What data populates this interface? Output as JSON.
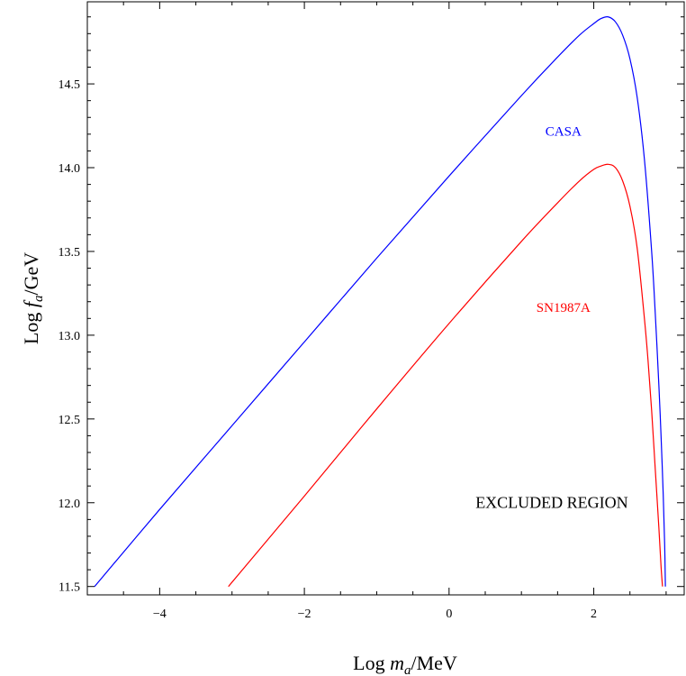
{
  "chart_data": {
    "type": "line",
    "xlabel": {
      "pre": "Log ",
      "var": "m",
      "sub": "a",
      "post": "/MeV"
    },
    "ylabel": {
      "pre": "Log ",
      "var": "f",
      "sub": "a",
      "post": "/GeV"
    },
    "xlim": [
      -5.0,
      3.25
    ],
    "ylim": [
      11.45,
      14.99
    ],
    "x_ticks": [
      -4,
      -2,
      0,
      2
    ],
    "x_tick_labels": [
      "−4",
      "−2",
      "0",
      "2"
    ],
    "y_ticks": [
      11.5,
      12.0,
      12.5,
      13.0,
      13.5,
      14.0,
      14.5
    ],
    "y_tick_labels": [
      "11.5",
      "12.0",
      "12.5",
      "13.0",
      "13.5",
      "14.0",
      "14.5"
    ],
    "series": [
      {
        "name": "CASA",
        "color": "#0000ff",
        "x": [
          -4.9,
          -4.0,
          -3.0,
          -2.0,
          -1.0,
          0.0,
          1.0,
          1.5,
          1.8,
          2.0,
          2.1,
          2.2,
          2.3,
          2.4,
          2.5,
          2.6,
          2.7,
          2.8,
          2.85,
          2.9,
          2.93,
          2.96,
          2.98,
          2.99
        ],
        "y": [
          11.5,
          11.96,
          12.46,
          12.96,
          13.46,
          13.95,
          14.43,
          14.66,
          14.79,
          14.86,
          14.89,
          14.9,
          14.87,
          14.79,
          14.65,
          14.42,
          14.05,
          13.5,
          13.13,
          12.7,
          12.4,
          12.05,
          11.75,
          11.5
        ]
      },
      {
        "name": "SN1987A",
        "color": "#ff0000",
        "x": [
          -3.05,
          -2.0,
          -1.0,
          0.0,
          1.0,
          1.5,
          1.8,
          2.0,
          2.1,
          2.2,
          2.3,
          2.4,
          2.5,
          2.6,
          2.7,
          2.75,
          2.8,
          2.85,
          2.9,
          2.93,
          2.95
        ],
        "y": [
          11.5,
          12.04,
          12.56,
          13.07,
          13.56,
          13.79,
          13.92,
          13.99,
          14.01,
          14.02,
          14.0,
          13.92,
          13.77,
          13.52,
          13.1,
          12.85,
          12.55,
          12.2,
          11.85,
          11.62,
          11.5
        ]
      }
    ],
    "annotations": [
      {
        "text": "CASA",
        "x": 1.58,
        "y": 14.19,
        "color": "#0000ff"
      },
      {
        "text": "SN1987A",
        "x": 1.58,
        "y": 13.14,
        "color": "#ff0000"
      },
      {
        "text": "EXCLUDED REGION",
        "x": 1.42,
        "y": 11.97,
        "color": "#000000"
      }
    ]
  }
}
